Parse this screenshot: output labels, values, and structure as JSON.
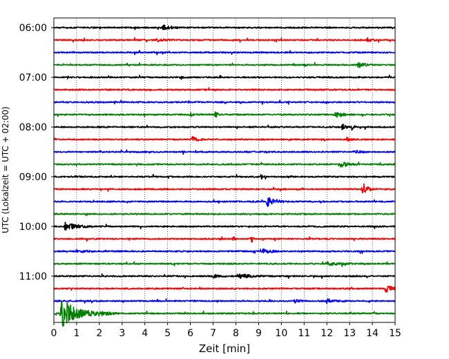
{
  "chart_data": {
    "type": "line",
    "title": "",
    "xlabel": "Zeit  [min]",
    "ylabel": "UTC (Lokalzeit = UTC + 02:00)",
    "xlim": [
      0,
      15
    ],
    "x_ticks": [
      0,
      1,
      2,
      3,
      4,
      5,
      6,
      7,
      8,
      9,
      10,
      11,
      12,
      13,
      14,
      15
    ],
    "x_tick_labels": [
      "0",
      "1",
      "2",
      "3",
      "4",
      "5",
      "6",
      "7",
      "8",
      "9",
      "10",
      "11",
      "12",
      "13",
      "14",
      "15"
    ],
    "y_tick_labels": [
      "06:00",
      "07:00",
      "08:00",
      "09:00",
      "10:00",
      "11:00"
    ],
    "grid": "vertical dotted at each minute",
    "trace_colors": [
      "#000000",
      "#ff0000",
      "#0000ff",
      "#008000"
    ],
    "trace_start_times": [
      "06:00",
      "06:15",
      "06:30",
      "06:45",
      "07:00",
      "07:15",
      "07:30",
      "07:45",
      "08:00",
      "08:15",
      "08:30",
      "08:45",
      "09:00",
      "09:15",
      "09:30",
      "09:45",
      "10:00",
      "10:15",
      "10:30",
      "10:45",
      "11:00",
      "11:15",
      "11:30",
      "11:45"
    ],
    "events": [
      {
        "trace": 0,
        "t": 4.8,
        "amp": 0.35,
        "dur": 0.8
      },
      {
        "trace": 1,
        "t": 4.5,
        "amp": 0.25,
        "dur": 0.8
      },
      {
        "trace": 1,
        "t": 13.8,
        "amp": 0.3,
        "dur": 0.4
      },
      {
        "trace": 3,
        "t": 13.4,
        "amp": 0.4,
        "dur": 0.6
      },
      {
        "trace": 3,
        "t": 11.0,
        "amp": 0.15,
        "dur": 0.4
      },
      {
        "trace": 4,
        "t": 5.6,
        "amp": 0.2,
        "dur": 0.2
      },
      {
        "trace": 7,
        "t": 7.1,
        "amp": 0.9,
        "dur": 0.15
      },
      {
        "trace": 7,
        "t": 12.4,
        "amp": 0.35,
        "dur": 0.8
      },
      {
        "trace": 7,
        "t": 6.0,
        "amp": 0.3,
        "dur": 0.2
      },
      {
        "trace": 8,
        "t": 12.7,
        "amp": 0.5,
        "dur": 0.3
      },
      {
        "trace": 8,
        "t": 13.1,
        "amp": 0.4,
        "dur": 0.2
      },
      {
        "trace": 9,
        "t": 6.1,
        "amp": 0.35,
        "dur": 0.5
      },
      {
        "trace": 9,
        "t": 12.9,
        "amp": 0.3,
        "dur": 0.3
      },
      {
        "trace": 10,
        "t": 13.2,
        "amp": 0.25,
        "dur": 0.6
      },
      {
        "trace": 11,
        "t": 12.6,
        "amp": 0.4,
        "dur": 0.8
      },
      {
        "trace": 12,
        "t": 9.1,
        "amp": 0.35,
        "dur": 0.3
      },
      {
        "trace": 12,
        "t": 10.3,
        "amp": 0.2,
        "dur": 0.3
      },
      {
        "trace": 13,
        "t": 13.6,
        "amp": 0.85,
        "dur": 0.45
      },
      {
        "trace": 14,
        "t": 9.4,
        "amp": 0.85,
        "dur": 0.7
      },
      {
        "trace": 16,
        "t": 0.5,
        "amp": 0.55,
        "dur": 1.2
      },
      {
        "trace": 17,
        "t": 8.7,
        "amp": 0.6,
        "dur": 0.15
      },
      {
        "trace": 17,
        "t": 7.9,
        "amp": 0.3,
        "dur": 0.15
      },
      {
        "trace": 18,
        "t": 9.2,
        "amp": 0.3,
        "dur": 0.8
      },
      {
        "trace": 18,
        "t": 1.0,
        "amp": 0.2,
        "dur": 1.0
      },
      {
        "trace": 19,
        "t": 12.0,
        "amp": 0.2,
        "dur": 1.5
      },
      {
        "trace": 20,
        "t": 8.1,
        "amp": 0.35,
        "dur": 1.2
      },
      {
        "trace": 20,
        "t": 7.0,
        "amp": 0.25,
        "dur": 0.6
      },
      {
        "trace": 21,
        "t": 14.6,
        "amp": 0.55,
        "dur": 0.6
      },
      {
        "trace": 22,
        "t": 12.0,
        "amp": 0.3,
        "dur": 0.8
      },
      {
        "trace": 22,
        "t": 10.6,
        "amp": 0.25,
        "dur": 0.5
      },
      {
        "trace": 23,
        "t": 0.35,
        "amp": 2.2,
        "dur": 1.6
      },
      {
        "trace": 23,
        "t": 2.0,
        "amp": 0.35,
        "dur": 1.0
      }
    ]
  }
}
